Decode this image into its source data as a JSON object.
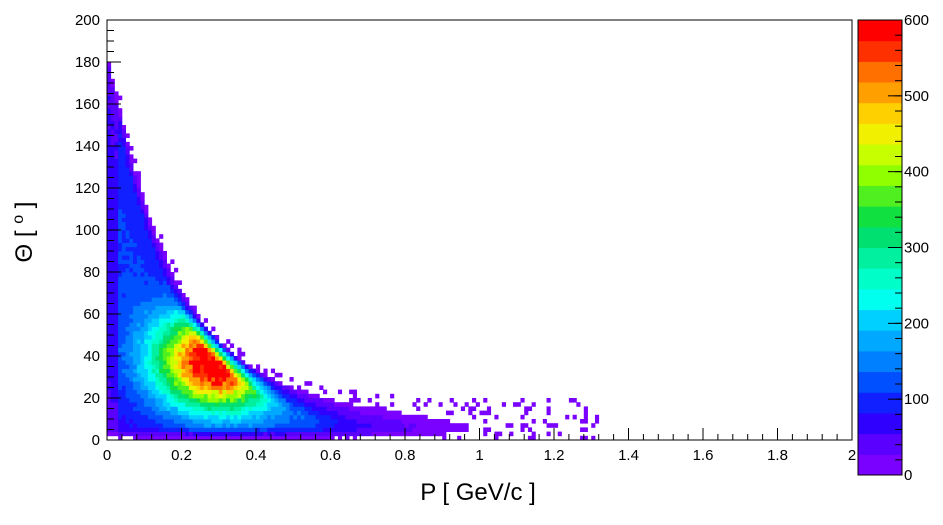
{
  "chart_data": {
    "type": "heatmap",
    "title": "",
    "xlabel": "P [ GeV/c ]",
    "ylabel": "Θ [ o ]",
    "ylabel_superscript": "o",
    "xlim": [
      0,
      2
    ],
    "ylim": [
      0,
      200
    ],
    "zlim": [
      0,
      600
    ],
    "x_ticks": [
      {
        "value": 0,
        "label": "0"
      },
      {
        "value": 0.2,
        "label": "0.2"
      },
      {
        "value": 0.4,
        "label": "0.4"
      },
      {
        "value": 0.6,
        "label": "0.6"
      },
      {
        "value": 0.8,
        "label": "0.8"
      },
      {
        "value": 1.0,
        "label": "1"
      },
      {
        "value": 1.2,
        "label": "1.2"
      },
      {
        "value": 1.4,
        "label": "1.4"
      },
      {
        "value": 1.6,
        "label": "1.6"
      },
      {
        "value": 1.8,
        "label": "1.8"
      },
      {
        "value": 2.0,
        "label": "2"
      }
    ],
    "y_ticks": [
      {
        "value": 0,
        "label": "0"
      },
      {
        "value": 20,
        "label": "20"
      },
      {
        "value": 40,
        "label": "40"
      },
      {
        "value": 60,
        "label": "60"
      },
      {
        "value": 80,
        "label": "80"
      },
      {
        "value": 100,
        "label": "100"
      },
      {
        "value": 120,
        "label": "120"
      },
      {
        "value": 140,
        "label": "140"
      },
      {
        "value": 160,
        "label": "160"
      },
      {
        "value": 180,
        "label": "180"
      },
      {
        "value": 200,
        "label": "200"
      }
    ],
    "z_ticks": [
      {
        "value": 0,
        "label": "0"
      },
      {
        "value": 100,
        "label": "100"
      },
      {
        "value": 200,
        "label": "200"
      },
      {
        "value": 300,
        "label": "300"
      },
      {
        "value": 400,
        "label": "400"
      },
      {
        "value": 500,
        "label": "500"
      },
      {
        "value": 600,
        "label": "600"
      }
    ],
    "palette": [
      "#7a00ff",
      "#5a00ff",
      "#3000ff",
      "#1020ff",
      "#0050ff",
      "#0080ff",
      "#00a8ff",
      "#00d0ff",
      "#00ffee",
      "#00ffc8",
      "#00f0a0",
      "#00e070",
      "#10e040",
      "#50f020",
      "#90ff00",
      "#c8ff00",
      "#f0f000",
      "#ffd000",
      "#ffa000",
      "#ff7000",
      "#ff3000",
      "#ff0000"
    ],
    "grid": false,
    "legend": "color-bar-right",
    "density_model": {
      "ridge": "theta = 12 + 175 * exp(-p / 0.18)",
      "max_p_hits": 1.3,
      "peak_region": {
        "p": [
          0.15,
          0.5
        ],
        "theta": [
          20,
          70
        ],
        "level": 600
      }
    }
  }
}
